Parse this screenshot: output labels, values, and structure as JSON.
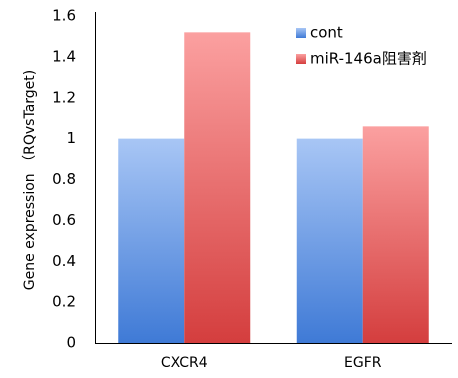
{
  "chart_data": {
    "type": "bar",
    "categories": [
      "CXCR4",
      "EGFR"
    ],
    "series": [
      {
        "name": "cont",
        "values": [
          1.0,
          1.0
        ],
        "color": "#6f9fe8"
      },
      {
        "name": "miR-146a阻害剤",
        "values": [
          1.52,
          1.06
        ],
        "color": "#ef7a7a"
      }
    ],
    "title": "",
    "xlabel": "",
    "ylabel": "Gene expression （RQvsTarget)",
    "ylim": [
      0,
      1.6
    ],
    "yticks": [
      0,
      0.2,
      0.4,
      0.6,
      0.8,
      1,
      1.2,
      1.4,
      1.6
    ],
    "ytick_labels": [
      "0",
      "0.2",
      "0.4",
      "0.6",
      "0.8",
      "1",
      "1.2",
      "1.4",
      "1.6"
    ],
    "grid": false,
    "legend_position": "top-right",
    "bar_style": "vertical gradient, lighter at top"
  }
}
